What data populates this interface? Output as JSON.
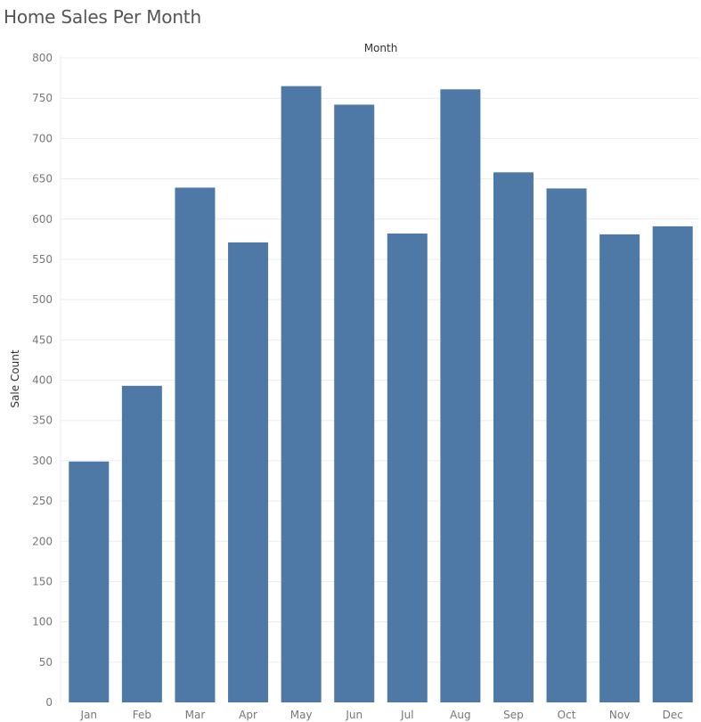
{
  "page": {
    "title": "Home Sales Per Month"
  },
  "colors": {
    "bar": "#4e79a7",
    "grid": "#ececec",
    "axis_text": "#777777",
    "title_text": "#555555"
  },
  "chart_data": {
    "type": "bar",
    "title": "Home Sales Per Month",
    "xlabel": "Month",
    "ylabel": "Sale Count",
    "categories": [
      "Jan",
      "Feb",
      "Mar",
      "Apr",
      "May",
      "Jun",
      "Jul",
      "Aug",
      "Sep",
      "Oct",
      "Nov",
      "Dec"
    ],
    "values": [
      299,
      393,
      639,
      571,
      765,
      742,
      582,
      761,
      658,
      638,
      581,
      591
    ],
    "ylim": [
      0,
      800
    ],
    "yticks": [
      0,
      50,
      100,
      150,
      200,
      250,
      300,
      350,
      400,
      450,
      500,
      550,
      600,
      650,
      700,
      750,
      800
    ],
    "xlabel_position": "top",
    "grid": true
  }
}
